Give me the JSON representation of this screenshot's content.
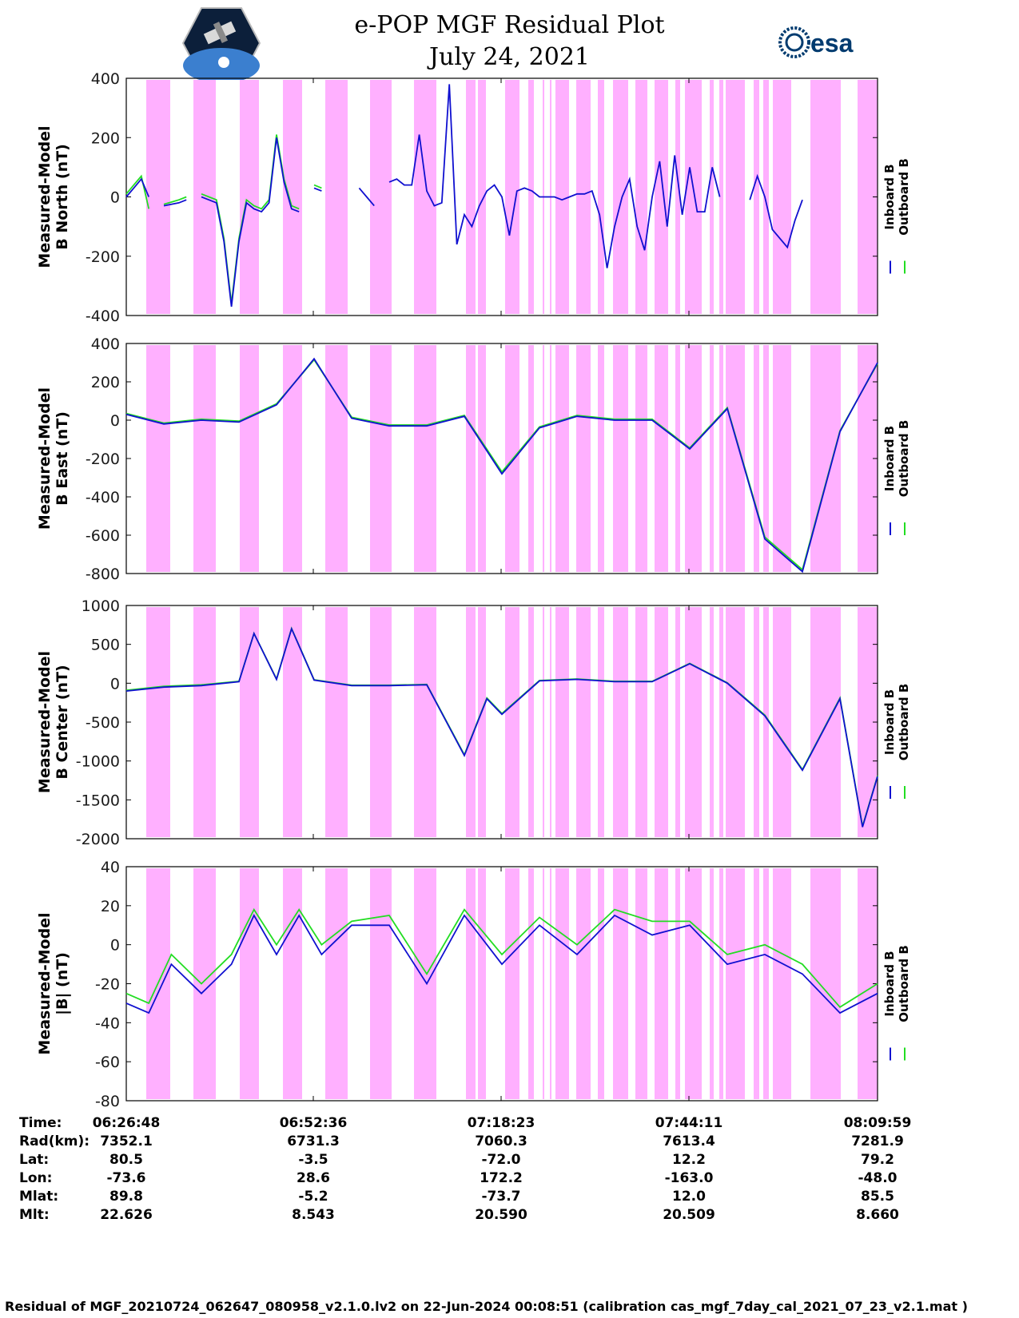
{
  "header": {
    "title_line1": "e-POP MGF Residual Plot",
    "title_line2": "July 24, 2021",
    "logo_left_name": "cassiope-mission-logo",
    "logo_right_text": "esa"
  },
  "colors": {
    "inboard": "#1010d0",
    "outboard": "#22dd22",
    "shade": "#ffb0ff"
  },
  "chart_data": [
    {
      "type": "line",
      "ylabel": "Measured-Model B North (nT)",
      "ylabel_lines": [
        "Measured-Model",
        "B North (nT)"
      ],
      "ylim": [
        -400,
        400
      ],
      "yticks": [
        400,
        200,
        0,
        -200,
        -400
      ],
      "ytick_labels": [
        "400",
        "200",
        "0",
        "-200",
        "-400"
      ],
      "legend": [
        "Inboard B",
        "Outboard B"
      ],
      "x_unit": "minutes since 06:26:48",
      "series": [
        {
          "name": "Inboard B",
          "x": [
            0,
            1,
            2,
            3,
            4,
            5,
            7,
            8,
            9,
            10,
            11,
            12,
            13,
            14,
            15,
            16,
            17,
            18,
            19,
            20,
            21,
            22,
            23,
            24,
            25,
            26,
            30,
            31,
            32,
            33,
            34,
            35,
            36,
            37,
            38,
            39,
            40,
            41,
            42,
            43,
            44,
            45,
            46,
            47,
            48,
            49,
            50,
            51,
            52,
            53,
            54,
            55,
            56,
            57,
            58,
            59,
            60,
            61,
            62,
            63,
            64,
            65,
            66,
            67,
            68,
            69,
            70,
            71,
            72,
            73,
            74,
            75,
            76,
            77,
            78,
            79,
            82,
            83,
            84,
            85,
            86,
            88,
            89,
            90,
            91,
            92,
            93,
            94,
            95,
            96,
            97,
            98,
            99,
            100
          ],
          "y": [
            0,
            30,
            60,
            0,
            null,
            -30,
            -20,
            -10,
            null,
            0,
            -10,
            -20,
            -150,
            -370,
            -150,
            -20,
            -40,
            -50,
            -20,
            200,
            50,
            -40,
            -50,
            null,
            30,
            20,
            null,
            30,
            0,
            -30,
            null,
            50,
            60,
            40,
            40,
            210,
            20,
            -30,
            -20,
            380,
            -160,
            -60,
            -100,
            -30,
            20,
            40,
            0,
            -130,
            20,
            30,
            20,
            0,
            0,
            0,
            -10,
            0,
            10,
            10,
            20,
            -60,
            -240,
            -100,
            0,
            60,
            -100,
            -180,
            0,
            120,
            -100,
            140,
            -60,
            100,
            -50,
            -50,
            100,
            0,
            null,
            -10,
            70,
            0,
            -110,
            -170,
            -80,
            -10,
            null,
            null,
            null,
            null,
            null,
            null,
            null,
            null,
            null,
            null
          ]
        },
        {
          "name": "Outboard B",
          "x": [
            0,
            1,
            2,
            3,
            4,
            5,
            7,
            8,
            9,
            10,
            11,
            12,
            13,
            14,
            15,
            16,
            17,
            18,
            19,
            20,
            21,
            22,
            23,
            24,
            25,
            26
          ],
          "y": [
            10,
            40,
            70,
            -40,
            null,
            -25,
            -10,
            0,
            null,
            10,
            0,
            -10,
            -140,
            -360,
            -140,
            -10,
            -30,
            -40,
            -10,
            210,
            60,
            -30,
            -40,
            null,
            40,
            30
          ]
        }
      ]
    },
    {
      "type": "line",
      "ylabel": "Measured-Model B East (nT)",
      "ylabel_lines": [
        "Measured-Model",
        "B East (nT)"
      ],
      "ylim": [
        -800,
        400
      ],
      "yticks": [
        400,
        200,
        0,
        -200,
        -400,
        -600,
        -800
      ],
      "ytick_labels": [
        "400",
        "200",
        "0",
        "-200",
        "-400",
        "-600",
        "-800"
      ],
      "legend": [
        "Inboard B",
        "Outboard B"
      ],
      "x_unit": "minutes since 06:26:48",
      "series": [
        {
          "name": "Inboard B",
          "x": [
            0,
            5,
            10,
            15,
            20,
            25,
            30,
            35,
            40,
            45,
            50,
            55,
            60,
            65,
            70,
            75,
            80,
            85,
            90,
            95,
            100
          ],
          "y": [
            30,
            -20,
            0,
            -10,
            80,
            320,
            10,
            -30,
            -30,
            20,
            -280,
            -40,
            20,
            0,
            0,
            -150,
            60,
            -620,
            -790,
            -60,
            300
          ]
        },
        {
          "name": "Outboard B",
          "x": [
            0,
            5,
            10,
            15,
            20,
            25,
            30,
            35,
            40,
            45,
            50,
            55,
            60,
            65,
            70,
            75,
            80,
            85,
            90,
            95,
            100
          ],
          "y": [
            35,
            -15,
            5,
            -5,
            85,
            315,
            15,
            -25,
            -25,
            25,
            -270,
            -35,
            25,
            5,
            5,
            -145,
            65,
            -610,
            -780,
            -55,
            295
          ]
        }
      ]
    },
    {
      "type": "line",
      "ylabel": "Measured-Model B Center (nT)",
      "ylabel_lines": [
        "Measured-Model",
        "B Center (nT)"
      ],
      "ylim": [
        -2000,
        1000
      ],
      "yticks": [
        1000,
        500,
        0,
        -500,
        -1000,
        -1500,
        -2000
      ],
      "ytick_labels": [
        "1000",
        "500",
        "0",
        "-500",
        "-1000",
        "-1500",
        "-2000"
      ],
      "legend": [
        "Inboard B",
        "Outboard B"
      ],
      "x_unit": "minutes since 06:26:48",
      "series": [
        {
          "name": "Inboard B",
          "x": [
            0,
            5,
            10,
            15,
            17,
            20,
            22,
            25,
            30,
            35,
            40,
            45,
            48,
            50,
            55,
            60,
            65,
            70,
            75,
            80,
            85,
            90,
            95,
            98,
            100
          ],
          "y": [
            -100,
            -50,
            -30,
            20,
            640,
            50,
            700,
            40,
            -30,
            -30,
            -20,
            -930,
            -200,
            -400,
            30,
            50,
            20,
            20,
            250,
            0,
            -420,
            -1120,
            -200,
            -1850,
            -1200
          ]
        },
        {
          "name": "Outboard B",
          "x": [
            0,
            5,
            10,
            15,
            17,
            20,
            22,
            25,
            30,
            35,
            40,
            45,
            48,
            50,
            55,
            60,
            65,
            70,
            75,
            80,
            85,
            90,
            95,
            98,
            100
          ],
          "y": [
            -90,
            -40,
            -20,
            25,
            640,
            55,
            705,
            45,
            -25,
            -25,
            -15,
            -920,
            -190,
            -390,
            35,
            55,
            25,
            25,
            255,
            5,
            -410,
            -1110,
            -190,
            -1840,
            -1190
          ]
        }
      ]
    },
    {
      "type": "line",
      "ylabel": "Measured-Model |B| (nT)",
      "ylabel_lines": [
        "Measured-Model",
        "|B| (nT)"
      ],
      "ylim": [
        -80,
        40
      ],
      "yticks": [
        40,
        20,
        0,
        -20,
        -40,
        -60,
        -80
      ],
      "ytick_labels": [
        "40",
        "20",
        "0",
        "-20",
        "-40",
        "-60",
        "-80"
      ],
      "legend": [
        "Inboard B",
        "Outboard B"
      ],
      "x_unit": "minutes since 06:26:48",
      "series": [
        {
          "name": "Inboard B",
          "x": [
            0,
            3,
            6,
            10,
            14,
            17,
            20,
            23,
            26,
            30,
            35,
            40,
            45,
            50,
            55,
            60,
            65,
            70,
            75,
            80,
            85,
            90,
            95,
            100
          ],
          "y": [
            -30,
            -35,
            -10,
            -25,
            -10,
            15,
            -5,
            15,
            -5,
            10,
            10,
            -20,
            15,
            -10,
            10,
            -5,
            15,
            5,
            10,
            -10,
            -5,
            -15,
            -35,
            -25
          ]
        },
        {
          "name": "Outboard B",
          "x": [
            0,
            3,
            6,
            10,
            14,
            17,
            20,
            23,
            26,
            30,
            35,
            40,
            45,
            50,
            55,
            60,
            65,
            70,
            75,
            80,
            85,
            90,
            95,
            100
          ],
          "y": [
            -25,
            -30,
            -5,
            -20,
            -5,
            18,
            0,
            18,
            0,
            12,
            15,
            -15,
            18,
            -5,
            14,
            0,
            18,
            12,
            12,
            -5,
            0,
            -10,
            -32,
            -20
          ]
        }
      ]
    }
  ],
  "x_axis": {
    "tick_times": [
      "06:26:48",
      "06:52:36",
      "07:18:23",
      "07:44:11",
      "08:09:59"
    ]
  },
  "info_table": {
    "rows": [
      {
        "label": "Time:",
        "values": [
          "06:26:48",
          "06:52:36",
          "07:18:23",
          "07:44:11",
          "08:09:59"
        ]
      },
      {
        "label": "Rad(km):",
        "values": [
          "7352.1",
          "6731.3",
          "7060.3",
          "7613.4",
          "7281.9"
        ]
      },
      {
        "label": "Lat:",
        "values": [
          "80.5",
          "-3.5",
          "-72.0",
          "12.2",
          "79.2"
        ]
      },
      {
        "label": "Lon:",
        "values": [
          "-73.6",
          "28.6",
          "172.2",
          "-163.0",
          "-48.0"
        ]
      },
      {
        "label": "Mlat:",
        "values": [
          "89.8",
          "-5.2",
          "-73.7",
          "12.0",
          "85.5"
        ]
      },
      {
        "label": "Mlt:",
        "values": [
          "22.626",
          "8.543",
          "20.590",
          "20.509",
          "8.660"
        ]
      }
    ]
  },
  "footer": {
    "text": "Residual of MGF_20210724_062647_080958_v2.1.0.lv2 on 22-Jun-2024 00:08:51 (calibration cas_mgf_7day_cal_2021_07_23_v2.1.mat )"
  }
}
